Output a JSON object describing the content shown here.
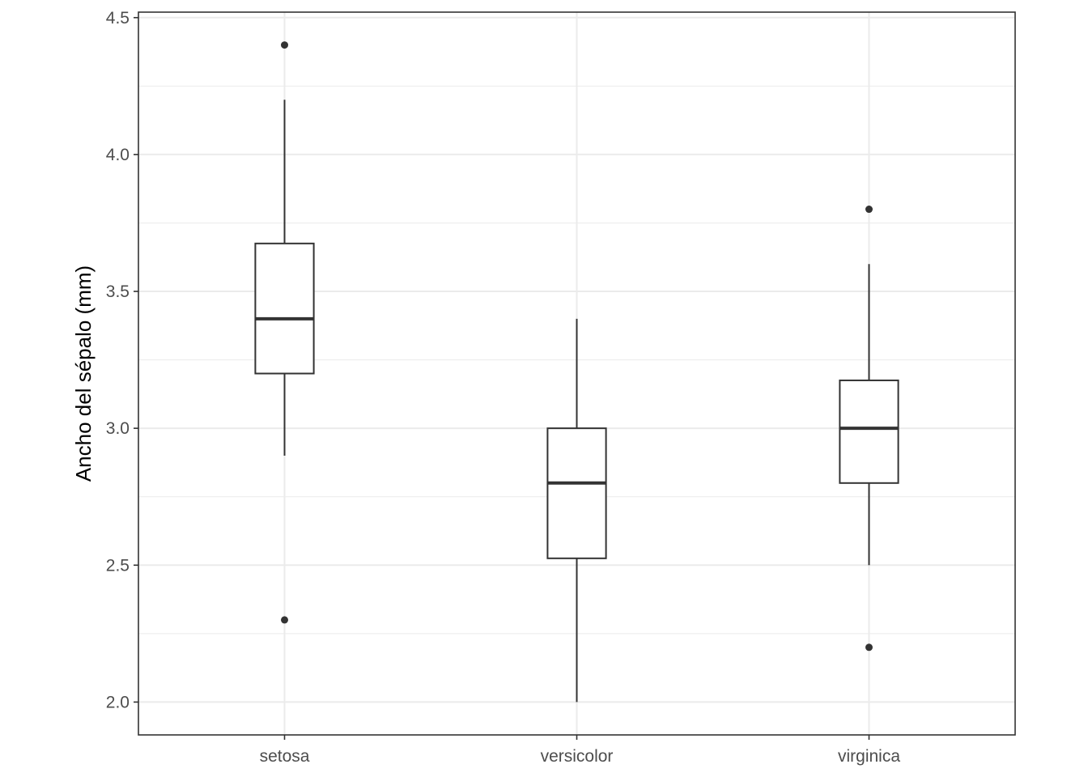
{
  "chart_data": {
    "type": "boxplot",
    "title": "",
    "xlabel": "",
    "ylabel": "Ancho del sépalo (mm)",
    "ylim": [
      1.88,
      4.52
    ],
    "yticks": [
      "2.0",
      "2.5",
      "3.0",
      "3.5",
      "4.0",
      "4.5"
    ],
    "ytick_values": [
      2.0,
      2.5,
      3.0,
      3.5,
      4.0,
      4.5
    ],
    "y_minor_ticks": [
      2.25,
      2.75,
      3.25,
      3.75,
      4.25
    ],
    "grid": true,
    "legend": "none",
    "categories": [
      "setosa",
      "versicolor",
      "virginica"
    ],
    "boxes": [
      {
        "category": "setosa",
        "whisker_low": 2.9,
        "q1": 3.2,
        "median": 3.4,
        "q3": 3.675,
        "whisker_high": 4.2,
        "outliers": [
          4.4,
          2.3
        ]
      },
      {
        "category": "versicolor",
        "whisker_low": 2.0,
        "q1": 2.525,
        "median": 2.8,
        "q3": 3.0,
        "whisker_high": 3.4,
        "outliers": []
      },
      {
        "category": "virginica",
        "whisker_low": 2.5,
        "q1": 2.8,
        "median": 3.0,
        "q3": 3.175,
        "whisker_high": 3.6,
        "outliers": [
          3.8,
          2.2
        ]
      }
    ],
    "colors": {
      "box_line": "#333333",
      "box_fill": "#ffffff",
      "grid": "#ebebeb",
      "panel_border": "#333333",
      "tick_text": "#4d4d4d"
    }
  }
}
